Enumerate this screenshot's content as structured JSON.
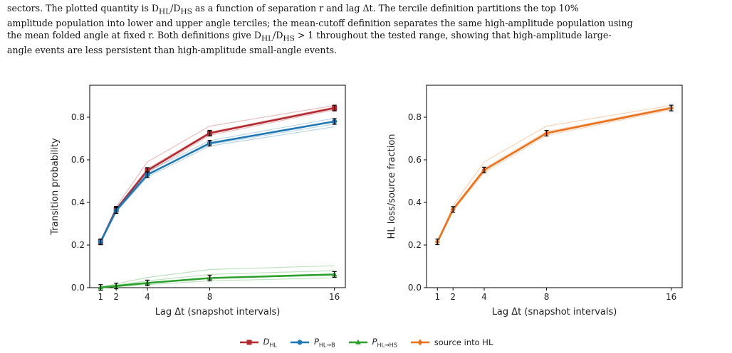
{
  "caption": {
    "line0": "sectors. The plotted quantity is D",
    "line0_sub1": "HL",
    "line0_mid": "/D",
    "line0_sub2": "HS",
    "line0_rest": " as a function of separation r and lag Δt. The tercile definition partitions the top 10%",
    "line1": "amplitude population into lower and upper angle terciles; the mean-cutoff definition separates the same high-amplitude population using",
    "line2_a": "the mean folded angle at fixed r. Both definitions give D",
    "line2_sub1": "HL",
    "line2_b": "/D",
    "line2_sub2": "HS",
    "line2_c": " > 1 throughout the tested range, showing that high-amplitude large-",
    "line3": "angle events are less persistent than high-amplitude small-angle events."
  },
  "chart_data": [
    {
      "type": "line",
      "ylabel": "Transition probability",
      "xlabel": "Lag Δt (snapshot intervals)",
      "x": [
        1,
        2,
        4,
        8,
        16
      ],
      "xticks": [
        "1",
        "2",
        "4",
        "8",
        "16"
      ],
      "yticks": [
        "0.0",
        "0.2",
        "0.4",
        "0.6",
        "0.8"
      ],
      "xlim": [
        0.3,
        16.7
      ],
      "ylim": [
        0.0,
        0.95
      ],
      "grid": false,
      "series": [
        {
          "name": "D_HL",
          "color": "#b22a2f",
          "marker": "square",
          "values": [
            0.215,
            0.368,
            0.55,
            0.725,
            0.843
          ],
          "thin": [
            [
              0.215,
              0.38,
              0.59,
              0.758,
              0.855
            ],
            [
              0.213,
              0.362,
              0.54,
              0.715,
              0.835
            ],
            [
              0.218,
              0.372,
              0.558,
              0.73,
              0.848
            ]
          ]
        },
        {
          "name": "P_HL→B",
          "color": "#1f77b4",
          "marker": "circle",
          "values": [
            0.215,
            0.362,
            0.53,
            0.678,
            0.78
          ],
          "thin": [
            [
              0.213,
              0.355,
              0.52,
              0.665,
              0.755
            ],
            [
              0.217,
              0.37,
              0.545,
              0.69,
              0.795
            ],
            [
              0.214,
              0.36,
              0.535,
              0.672,
              0.768
            ]
          ]
        },
        {
          "name": "P_HL→HS",
          "color": "#2ca02c",
          "marker": "triangle",
          "values": [
            0.001,
            0.008,
            0.022,
            0.045,
            0.062
          ],
          "thin": [
            [
              0.002,
              0.018,
              0.048,
              0.085,
              0.103
            ],
            [
              0.001,
              0.012,
              0.032,
              0.062,
              0.08
            ],
            [
              0.001,
              0.004,
              0.014,
              0.032,
              0.046
            ]
          ]
        }
      ]
    },
    {
      "type": "line",
      "ylabel": "HL loss/source fraction",
      "xlabel": "Lag Δt (snapshot intervals)",
      "x": [
        1,
        2,
        4,
        8,
        16
      ],
      "xticks": [
        "1",
        "2",
        "4",
        "8",
        "16"
      ],
      "yticks": [
        "0.0",
        "0.2",
        "0.4",
        "0.6",
        "0.8"
      ],
      "xlim": [
        0.3,
        16.7
      ],
      "ylim": [
        0.0,
        0.95
      ],
      "grid": false,
      "series": [
        {
          "name": "source into HL",
          "color": "#e8711c",
          "marker": "diamond",
          "values": [
            0.215,
            0.367,
            0.552,
            0.725,
            0.843
          ],
          "thin": [
            [
              0.215,
              0.385,
              0.59,
              0.758,
              0.855
            ],
            [
              0.213,
              0.36,
              0.54,
              0.715,
              0.835
            ],
            [
              0.217,
              0.372,
              0.56,
              0.732,
              0.848
            ]
          ]
        }
      ]
    }
  ],
  "legend": [
    {
      "main": "D",
      "sub": "HL",
      "italic": true,
      "color": "#b22a2f",
      "marker": "square"
    },
    {
      "main": "P",
      "sub": "HL→B",
      "italic": true,
      "color": "#1f77b4",
      "marker": "circle"
    },
    {
      "main": "P",
      "sub": "HL→HS",
      "italic": true,
      "color": "#2ca02c",
      "marker": "triangle"
    },
    {
      "main": "source into HL",
      "sub": "",
      "italic": false,
      "color": "#e8711c",
      "marker": "diamond"
    }
  ]
}
